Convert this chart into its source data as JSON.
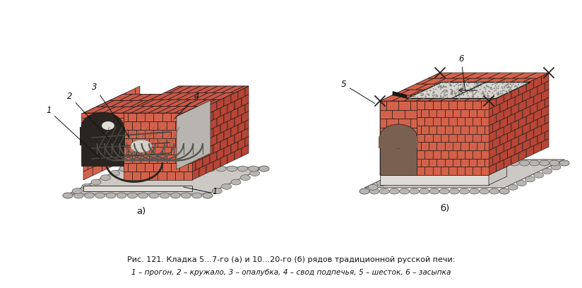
{
  "background_color": "#ffffff",
  "figure_width": 8.24,
  "figure_height": 4.08,
  "dpi": 100,
  "caption_line1": "Рис. 121. Кладка 5...7-го (а) и 10...20-го (б) рядов традиционной русской печи:",
  "caption_line2": "1 – прогон, 2 – кружало, 3 – опалубка, 4 – свод подпечья, 5 – шесток, 6 – засыпка",
  "label_a": "а)",
  "label_b": "б)",
  "brick_red": "#d4614a",
  "brick_red_dark": "#b84535",
  "brick_red_top": "#c85848",
  "mortar": "#1a1a1a",
  "base_gray": "#d0cdc8",
  "cobble_gray": "#b8b5b0",
  "interior_gray": "#a8a5a0",
  "arch_board": "#888880",
  "fill_stipple": "#c8c5be",
  "white_arch": "#e8e5e0",
  "annotation_color": "#111111",
  "caption_fs": 8.0,
  "annot_fs": 8.5,
  "label_fs": 9.5
}
